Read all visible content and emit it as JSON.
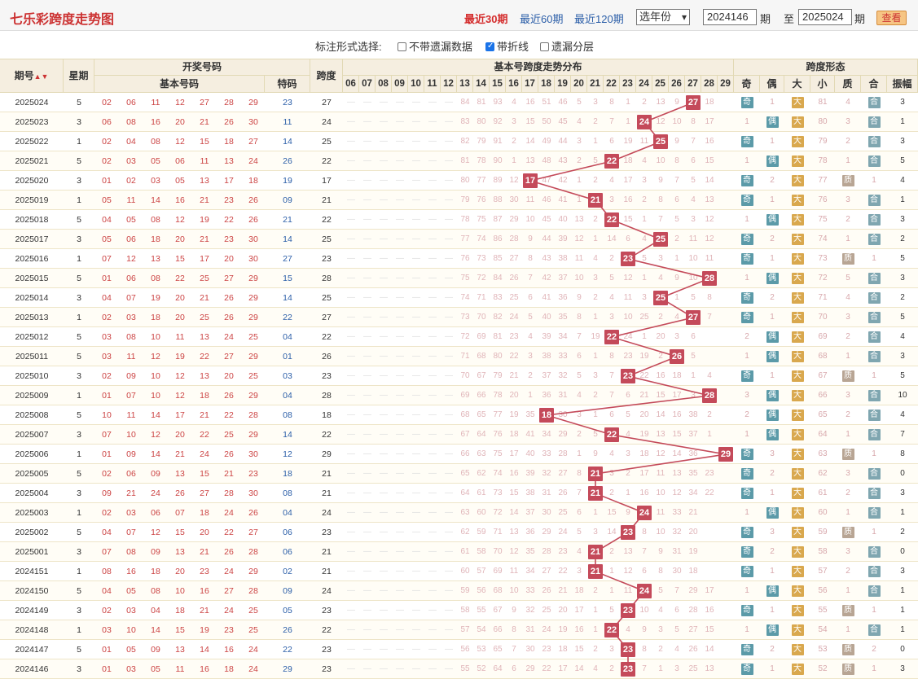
{
  "header": {
    "title": "七乐彩跨度走势图",
    "periods": [
      "最近30期",
      "最近60期",
      "最近120期"
    ],
    "active_period": "最近30期",
    "year_select": "选年份",
    "from_issue": "2024146",
    "issue_unit": "期",
    "to_label": "至",
    "to_issue": "2025024",
    "query_button": "查看"
  },
  "options": {
    "label": "标注形式选择:",
    "items": [
      {
        "label": "不带遗漏数据",
        "checked": false
      },
      {
        "label": "带折线",
        "checked": true
      },
      {
        "label": "遗漏分层",
        "checked": false
      }
    ]
  },
  "table_headers": {
    "issue": "期号",
    "issue_sort_icon": "sort-icon",
    "weekday": "星期",
    "draw_group": "开奖号码",
    "basic_numbers": "基本号码",
    "special": "特码",
    "span": "跨度",
    "dist_group": "基本号跨度走势分布",
    "span_cols": [
      "06",
      "07",
      "08",
      "09",
      "10",
      "11",
      "12",
      "13",
      "14",
      "15",
      "16",
      "17",
      "18",
      "19",
      "20",
      "21",
      "22",
      "23",
      "24",
      "25",
      "26",
      "27",
      "28",
      "29"
    ],
    "shape_group": "跨度形态",
    "shape_cols": [
      "奇",
      "偶",
      "大",
      "小",
      "质",
      "合",
      "振幅"
    ]
  },
  "labels": {
    "odd": "奇",
    "even": "偶",
    "big": "大",
    "prime": "质",
    "composite": "合"
  },
  "rows": [
    {
      "issue": "2025024",
      "week": "5",
      "nums": [
        "02",
        "06",
        "11",
        "12",
        "27",
        "28",
        "29"
      ],
      "sp": "23",
      "span": 27,
      "miss": [
        "84",
        "81",
        "93",
        "4",
        "16",
        "51",
        "46",
        "5",
        "3",
        "8",
        "1",
        "2",
        "13",
        "9",
        "18"
      ],
      "odd": "",
      "even": "1",
      "big": "",
      "small": "81",
      "prime": "4",
      "comp": "",
      "amp": "3"
    },
    {
      "issue": "2025023",
      "week": "3",
      "nums": [
        "06",
        "08",
        "16",
        "20",
        "21",
        "26",
        "30"
      ],
      "sp": "11",
      "span": 24,
      "miss": [
        "83",
        "80",
        "92",
        "3",
        "15",
        "50",
        "45",
        "4",
        "2",
        "7",
        "1",
        "12",
        "10",
        "8",
        "17"
      ],
      "odd": "1",
      "even": "",
      "big": "",
      "small": "80",
      "prime": "3",
      "comp": "",
      "amp": "1"
    },
    {
      "issue": "2025022",
      "week": "1",
      "nums": [
        "02",
        "04",
        "08",
        "12",
        "15",
        "18",
        "27"
      ],
      "sp": "14",
      "span": 25,
      "miss": [
        "82",
        "79",
        "91",
        "2",
        "14",
        "49",
        "44",
        "3",
        "1",
        "6",
        "19",
        "11",
        "9",
        "7",
        "16"
      ],
      "odd": "",
      "even": "1",
      "big": "",
      "small": "79",
      "prime": "2",
      "comp": "",
      "amp": "3"
    },
    {
      "issue": "2025021",
      "week": "5",
      "nums": [
        "02",
        "03",
        "05",
        "06",
        "11",
        "13",
        "24"
      ],
      "sp": "26",
      "span": 22,
      "miss": [
        "81",
        "78",
        "90",
        "1",
        "13",
        "48",
        "43",
        "2",
        "5",
        "18",
        "4",
        "10",
        "8",
        "6",
        "15"
      ],
      "odd": "1",
      "even": "",
      "big": "",
      "small": "78",
      "prime": "1",
      "comp": "",
      "amp": "5"
    },
    {
      "issue": "2025020",
      "week": "3",
      "nums": [
        "01",
        "02",
        "03",
        "05",
        "13",
        "17",
        "18"
      ],
      "sp": "19",
      "span": 17,
      "miss": [
        "80",
        "77",
        "89",
        "12",
        "47",
        "42",
        "1",
        "2",
        "4",
        "17",
        "3",
        "9",
        "7",
        "5",
        "14"
      ],
      "odd": "",
      "even": "2",
      "big": "",
      "small": "77",
      "prime": "",
      "comp": "1",
      "amp": "4"
    },
    {
      "issue": "2025019",
      "week": "1",
      "nums": [
        "05",
        "11",
        "14",
        "16",
        "21",
        "23",
        "26"
      ],
      "sp": "09",
      "span": 21,
      "miss": [
        "79",
        "76",
        "88",
        "30",
        "11",
        "46",
        "41",
        "1",
        "3",
        "16",
        "2",
        "8",
        "6",
        "4",
        "13"
      ],
      "odd": "",
      "even": "1",
      "big": "",
      "small": "76",
      "prime": "3",
      "comp": "",
      "amp": "1"
    },
    {
      "issue": "2025018",
      "week": "5",
      "nums": [
        "04",
        "05",
        "08",
        "12",
        "19",
        "22",
        "26"
      ],
      "sp": "21",
      "span": 22,
      "miss": [
        "78",
        "75",
        "87",
        "29",
        "10",
        "45",
        "40",
        "13",
        "2",
        "15",
        "1",
        "7",
        "5",
        "3",
        "12"
      ],
      "odd": "1",
      "even": "",
      "big": "",
      "small": "75",
      "prime": "2",
      "comp": "",
      "amp": "3"
    },
    {
      "issue": "2025017",
      "week": "3",
      "nums": [
        "05",
        "06",
        "18",
        "20",
        "21",
        "23",
        "30"
      ],
      "sp": "14",
      "span": 25,
      "miss": [
        "77",
        "74",
        "86",
        "28",
        "9",
        "44",
        "39",
        "12",
        "1",
        "14",
        "6",
        "4",
        "2",
        "11",
        "12"
      ],
      "odd": "",
      "even": "2",
      "big": "",
      "small": "74",
      "prime": "1",
      "comp": "",
      "amp": "2"
    },
    {
      "issue": "2025016",
      "week": "1",
      "nums": [
        "07",
        "12",
        "13",
        "15",
        "17",
        "20",
        "30"
      ],
      "sp": "27",
      "span": 23,
      "miss": [
        "76",
        "73",
        "85",
        "27",
        "8",
        "43",
        "38",
        "11",
        "4",
        "2",
        "5",
        "3",
        "1",
        "10",
        "11"
      ],
      "odd": "",
      "even": "1",
      "big": "",
      "small": "73",
      "prime": "",
      "comp": "1",
      "amp": "5"
    },
    {
      "issue": "2025015",
      "week": "5",
      "nums": [
        "01",
        "06",
        "08",
        "22",
        "25",
        "27",
        "29"
      ],
      "sp": "15",
      "span": 28,
      "miss": [
        "75",
        "72",
        "84",
        "26",
        "7",
        "42",
        "37",
        "10",
        "3",
        "5",
        "12",
        "1",
        "4",
        "9",
        "10"
      ],
      "odd": "1",
      "even": "",
      "big": "",
      "small": "72",
      "prime": "5",
      "comp": "",
      "amp": "3"
    },
    {
      "issue": "2025014",
      "week": "3",
      "nums": [
        "04",
        "07",
        "19",
        "20",
        "21",
        "26",
        "29"
      ],
      "sp": "14",
      "span": 25,
      "miss": [
        "74",
        "71",
        "83",
        "25",
        "6",
        "41",
        "36",
        "9",
        "2",
        "4",
        "11",
        "3",
        "1",
        "5",
        "8"
      ],
      "odd": "",
      "even": "2",
      "big": "",
      "small": "71",
      "prime": "4",
      "comp": "",
      "amp": "2"
    },
    {
      "issue": "2025013",
      "week": "1",
      "nums": [
        "02",
        "03",
        "18",
        "20",
        "25",
        "26",
        "29"
      ],
      "sp": "22",
      "span": 27,
      "miss": [
        "73",
        "70",
        "82",
        "24",
        "5",
        "40",
        "35",
        "8",
        "1",
        "3",
        "10",
        "25",
        "2",
        "4",
        "7"
      ],
      "odd": "",
      "even": "1",
      "big": "",
      "small": "70",
      "prime": "3",
      "comp": "",
      "amp": "5"
    },
    {
      "issue": "2025012",
      "week": "5",
      "nums": [
        "03",
        "08",
        "10",
        "11",
        "13",
        "24",
        "25"
      ],
      "sp": "04",
      "span": 22,
      "miss": [
        "72",
        "69",
        "81",
        "23",
        "4",
        "39",
        "34",
        "7",
        "19",
        "24",
        "1",
        "20",
        "3",
        "6"
      ],
      "odd": "2",
      "even": "",
      "big": "",
      "small": "69",
      "prime": "2",
      "comp": "",
      "amp": "4"
    },
    {
      "issue": "2025011",
      "week": "5",
      "nums": [
        "03",
        "11",
        "12",
        "19",
        "22",
        "27",
        "29"
      ],
      "sp": "01",
      "span": 26,
      "miss": [
        "71",
        "68",
        "80",
        "22",
        "3",
        "38",
        "33",
        "6",
        "1",
        "8",
        "23",
        "19",
        "2",
        "5"
      ],
      "odd": "1",
      "even": "",
      "big": "",
      "small": "68",
      "prime": "1",
      "comp": "",
      "amp": "3"
    },
    {
      "issue": "2025010",
      "week": "3",
      "nums": [
        "02",
        "09",
        "10",
        "12",
        "13",
        "20",
        "25"
      ],
      "sp": "03",
      "span": 23,
      "miss": [
        "70",
        "67",
        "79",
        "21",
        "2",
        "37",
        "32",
        "5",
        "3",
        "7",
        "22",
        "16",
        "18",
        "1",
        "4"
      ],
      "odd": "",
      "even": "1",
      "big": "",
      "small": "67",
      "prime": "",
      "comp": "1",
      "amp": "5"
    },
    {
      "issue": "2025009",
      "week": "1",
      "nums": [
        "01",
        "07",
        "10",
        "12",
        "18",
        "26",
        "29"
      ],
      "sp": "04",
      "span": 28,
      "miss": [
        "69",
        "66",
        "78",
        "20",
        "1",
        "36",
        "31",
        "4",
        "2",
        "7",
        "6",
        "21",
        "15",
        "17",
        "3"
      ],
      "odd": "3",
      "even": "",
      "big": "",
      "small": "66",
      "prime": "3",
      "comp": "",
      "amp": "10"
    },
    {
      "issue": "2025008",
      "week": "5",
      "nums": [
        "10",
        "11",
        "14",
        "17",
        "21",
        "22",
        "28"
      ],
      "sp": "08",
      "span": 18,
      "miss": [
        "68",
        "65",
        "77",
        "19",
        "35",
        "30",
        "3",
        "1",
        "6",
        "5",
        "20",
        "14",
        "16",
        "38",
        "2"
      ],
      "odd": "2",
      "even": "",
      "big": "",
      "small": "65",
      "prime": "2",
      "comp": "",
      "amp": "4"
    },
    {
      "issue": "2025007",
      "week": "3",
      "nums": [
        "07",
        "10",
        "12",
        "20",
        "22",
        "25",
        "29"
      ],
      "sp": "14",
      "span": 22,
      "miss": [
        "67",
        "64",
        "76",
        "18",
        "41",
        "34",
        "29",
        "2",
        "5",
        "4",
        "19",
        "13",
        "15",
        "37",
        "1"
      ],
      "odd": "1",
      "even": "",
      "big": "",
      "small": "64",
      "prime": "1",
      "comp": "",
      "amp": "7"
    },
    {
      "issue": "2025006",
      "week": "1",
      "nums": [
        "01",
        "09",
        "14",
        "21",
        "24",
        "26",
        "30"
      ],
      "sp": "12",
      "span": 29,
      "miss": [
        "66",
        "63",
        "75",
        "17",
        "40",
        "33",
        "28",
        "1",
        "9",
        "4",
        "3",
        "18",
        "12",
        "14",
        "36"
      ],
      "odd": "",
      "even": "3",
      "big": "",
      "small": "63",
      "prime": "",
      "comp": "1",
      "amp": "8"
    },
    {
      "issue": "2025005",
      "week": "5",
      "nums": [
        "02",
        "06",
        "09",
        "13",
        "15",
        "21",
        "23"
      ],
      "sp": "18",
      "span": 21,
      "miss": [
        "65",
        "62",
        "74",
        "16",
        "39",
        "32",
        "27",
        "8",
        "3",
        "2",
        "17",
        "11",
        "13",
        "35",
        "23"
      ],
      "odd": "",
      "even": "2",
      "big": "",
      "small": "62",
      "prime": "3",
      "comp": "",
      "amp": "0"
    },
    {
      "issue": "2025004",
      "week": "3",
      "nums": [
        "09",
        "21",
        "24",
        "26",
        "27",
        "28",
        "30"
      ],
      "sp": "08",
      "span": 21,
      "miss": [
        "64",
        "61",
        "73",
        "15",
        "38",
        "31",
        "26",
        "7",
        "2",
        "1",
        "16",
        "10",
        "12",
        "34",
        "22"
      ],
      "odd": "",
      "even": "1",
      "big": "",
      "small": "61",
      "prime": "2",
      "comp": "",
      "amp": "3"
    },
    {
      "issue": "2025003",
      "week": "1",
      "nums": [
        "02",
        "03",
        "06",
        "07",
        "18",
        "24",
        "26"
      ],
      "sp": "04",
      "span": 24,
      "miss": [
        "63",
        "60",
        "72",
        "14",
        "37",
        "30",
        "25",
        "6",
        "1",
        "15",
        "9",
        "11",
        "33",
        "21"
      ],
      "odd": "1",
      "even": "",
      "big": "",
      "small": "60",
      "prime": "1",
      "comp": "",
      "amp": "1"
    },
    {
      "issue": "2025002",
      "week": "5",
      "nums": [
        "04",
        "07",
        "12",
        "15",
        "20",
        "22",
        "27"
      ],
      "sp": "06",
      "span": 23,
      "miss": [
        "62",
        "59",
        "71",
        "13",
        "36",
        "29",
        "24",
        "5",
        "3",
        "14",
        "8",
        "10",
        "32",
        "20"
      ],
      "odd": "",
      "even": "3",
      "big": "",
      "small": "59",
      "prime": "",
      "comp": "1",
      "amp": "2"
    },
    {
      "issue": "2025001",
      "week": "3",
      "nums": [
        "07",
        "08",
        "09",
        "13",
        "21",
        "26",
        "28"
      ],
      "sp": "06",
      "span": 21,
      "miss": [
        "61",
        "58",
        "70",
        "12",
        "35",
        "28",
        "23",
        "4",
        "2",
        "13",
        "7",
        "9",
        "31",
        "19"
      ],
      "odd": "",
      "even": "2",
      "big": "",
      "small": "58",
      "prime": "3",
      "comp": "",
      "amp": "0"
    },
    {
      "issue": "2024151",
      "week": "1",
      "nums": [
        "08",
        "16",
        "18",
        "20",
        "23",
        "24",
        "29"
      ],
      "sp": "02",
      "span": 21,
      "miss": [
        "60",
        "57",
        "69",
        "11",
        "34",
        "27",
        "22",
        "3",
        "1",
        "12",
        "6",
        "8",
        "30",
        "18"
      ],
      "odd": "",
      "even": "1",
      "big": "",
      "small": "57",
      "prime": "2",
      "comp": "",
      "amp": "3"
    },
    {
      "issue": "2024150",
      "week": "5",
      "nums": [
        "04",
        "05",
        "08",
        "10",
        "16",
        "27",
        "28"
      ],
      "sp": "09",
      "span": 24,
      "miss": [
        "59",
        "56",
        "68",
        "10",
        "33",
        "26",
        "21",
        "18",
        "2",
        "1",
        "11",
        "5",
        "7",
        "29",
        "17"
      ],
      "odd": "1",
      "even": "",
      "big": "",
      "small": "56",
      "prime": "1",
      "comp": "",
      "amp": "1"
    },
    {
      "issue": "2024149",
      "week": "3",
      "nums": [
        "02",
        "03",
        "04",
        "18",
        "21",
        "24",
        "25"
      ],
      "sp": "05",
      "span": 23,
      "miss": [
        "58",
        "55",
        "67",
        "9",
        "32",
        "25",
        "20",
        "17",
        "1",
        "5",
        "10",
        "4",
        "6",
        "28",
        "16"
      ],
      "odd": "",
      "even": "1",
      "big": "",
      "small": "55",
      "prime": "",
      "comp": "1",
      "amp": "1"
    },
    {
      "issue": "2024148",
      "week": "1",
      "nums": [
        "03",
        "10",
        "14",
        "15",
        "19",
        "23",
        "25"
      ],
      "sp": "26",
      "span": 22,
      "miss": [
        "57",
        "54",
        "66",
        "8",
        "31",
        "24",
        "19",
        "16",
        "1",
        "4",
        "9",
        "3",
        "5",
        "27",
        "15"
      ],
      "odd": "1",
      "even": "",
      "big": "",
      "small": "54",
      "prime": "1",
      "comp": "",
      "amp": "1"
    },
    {
      "issue": "2024147",
      "week": "5",
      "nums": [
        "01",
        "05",
        "09",
        "13",
        "14",
        "16",
        "24"
      ],
      "sp": "22",
      "span": 23,
      "miss": [
        "56",
        "53",
        "65",
        "7",
        "30",
        "23",
        "18",
        "15",
        "2",
        "3",
        "8",
        "2",
        "4",
        "26",
        "14"
      ],
      "odd": "",
      "even": "2",
      "big": "",
      "small": "53",
      "prime": "",
      "comp": "2",
      "amp": "0"
    },
    {
      "issue": "2024146",
      "week": "3",
      "nums": [
        "01",
        "03",
        "05",
        "11",
        "16",
        "18",
        "24"
      ],
      "sp": "29",
      "span": 23,
      "miss": [
        "55",
        "52",
        "64",
        "6",
        "29",
        "22",
        "17",
        "14",
        "4",
        "2",
        "7",
        "1",
        "3",
        "25",
        "13"
      ],
      "odd": "",
      "even": "1",
      "big": "",
      "small": "52",
      "prime": "",
      "comp": "1",
      "amp": "3"
    }
  ],
  "colors": {
    "accent": "#d42c2c",
    "ball": "#c44a5a",
    "odd": "#5b9aa8",
    "even": "#5b9aa8",
    "big": "#d9a84e",
    "prime": "#b8a594",
    "composite": "#7fa6b0"
  }
}
